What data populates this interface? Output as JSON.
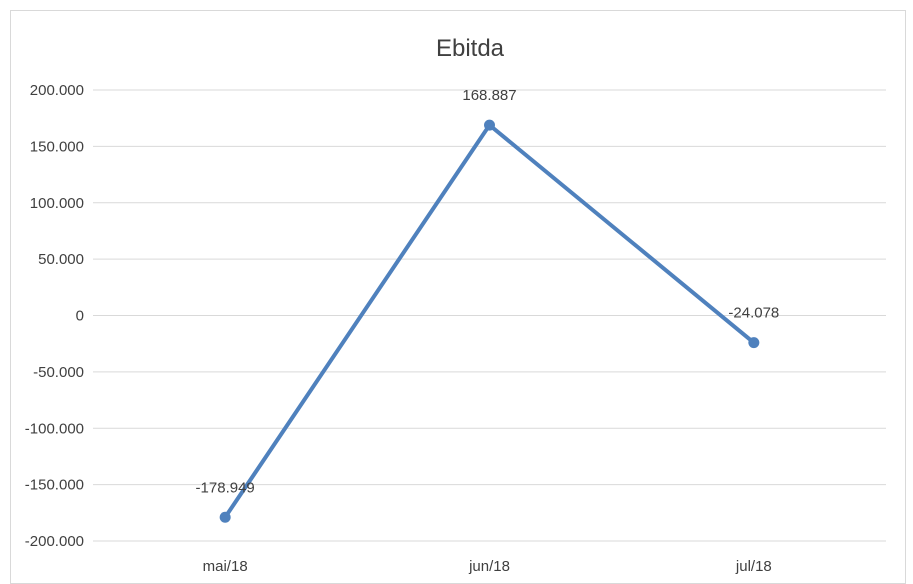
{
  "chart_data": {
    "type": "line",
    "title": "Ebitda",
    "xlabel": "",
    "ylabel": "",
    "categories": [
      "mai/18",
      "jun/18",
      "jul/18"
    ],
    "series": [
      {
        "values": [
          -178949,
          168887,
          -24078
        ],
        "labels": [
          "-178.949",
          "168.887",
          "-24.078"
        ]
      }
    ],
    "ylim": [
      -200000,
      200000
    ],
    "yticks": [
      200000,
      150000,
      100000,
      50000,
      0,
      -50000,
      -100000,
      -150000,
      -200000
    ],
    "ytick_labels": [
      "200.000",
      "150.000",
      "100.000",
      "50.000",
      "0",
      "-50.000",
      "-100.000",
      "-150.000",
      "-200.000"
    ],
    "grid": true,
    "legend": "none",
    "color": "#4f81bd"
  }
}
